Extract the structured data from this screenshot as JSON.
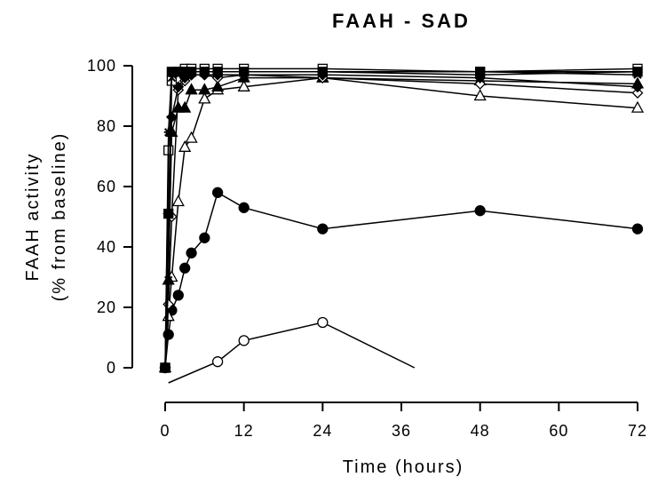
{
  "chart_data": {
    "type": "line",
    "title": "FAAH - SAD",
    "xlabel": "Time (hours)",
    "ylabel": "FAAH activity",
    "ylabel2": "(% from baseline)",
    "xlim": [
      0,
      72
    ],
    "ylim": [
      0,
      100
    ],
    "xticks": [
      0,
      12,
      24,
      36,
      48,
      60,
      72
    ],
    "yticks": [
      0,
      20,
      40,
      60,
      80,
      100
    ],
    "grid": false,
    "legend": "none",
    "series": [
      {
        "marker": "open-circle",
        "points": [
          [
            0.5,
            -5
          ],
          [
            8,
            2
          ],
          [
            12,
            9
          ],
          [
            24,
            15
          ],
          [
            38,
            0
          ]
        ]
      },
      {
        "marker": "filled-circle",
        "points": [
          [
            0,
            0
          ],
          [
            0.5,
            11
          ],
          [
            1,
            19
          ],
          [
            2,
            24
          ],
          [
            3,
            33
          ],
          [
            4,
            38
          ],
          [
            6,
            43
          ],
          [
            8,
            58
          ],
          [
            12,
            53
          ],
          [
            24,
            46
          ],
          [
            48,
            52
          ],
          [
            72,
            46
          ]
        ]
      },
      {
        "marker": "open-triangle",
        "points": [
          [
            0,
            0
          ],
          [
            0.5,
            17
          ],
          [
            1,
            30
          ],
          [
            2,
            55
          ],
          [
            3,
            73
          ],
          [
            4,
            76
          ],
          [
            6,
            89
          ],
          [
            8,
            92
          ],
          [
            12,
            93
          ],
          [
            24,
            96
          ],
          [
            48,
            90
          ],
          [
            72,
            86
          ]
        ]
      },
      {
        "marker": "filled-triangle",
        "points": [
          [
            0,
            0
          ],
          [
            0.5,
            29
          ],
          [
            1,
            78
          ],
          [
            2,
            86
          ],
          [
            3,
            86
          ],
          [
            4,
            92
          ],
          [
            6,
            92
          ],
          [
            8,
            93
          ],
          [
            12,
            96
          ],
          [
            24,
            96
          ],
          [
            48,
            95
          ],
          [
            72,
            94
          ]
        ]
      },
      {
        "marker": "open-diamond",
        "points": [
          [
            0,
            0
          ],
          [
            0.5,
            21
          ],
          [
            1,
            50
          ],
          [
            2,
            92
          ],
          [
            3,
            95
          ],
          [
            4,
            97
          ],
          [
            6,
            97
          ],
          [
            8,
            96
          ],
          [
            12,
            97
          ],
          [
            24,
            96
          ],
          [
            48,
            94
          ],
          [
            72,
            91
          ]
        ]
      },
      {
        "marker": "filled-diamond",
        "points": [
          [
            0,
            0
          ],
          [
            0.5,
            51
          ],
          [
            1,
            83
          ],
          [
            2,
            93
          ],
          [
            3,
            96
          ],
          [
            4,
            97
          ],
          [
            6,
            97
          ],
          [
            8,
            97
          ],
          [
            12,
            97
          ],
          [
            24,
            97
          ],
          [
            48,
            96
          ],
          [
            72,
            93
          ]
        ]
      },
      {
        "marker": "open-square",
        "points": [
          [
            0,
            0
          ],
          [
            0.5,
            72
          ],
          [
            1,
            95
          ],
          [
            2,
            98
          ],
          [
            3,
            99
          ],
          [
            4,
            99
          ],
          [
            6,
            99
          ],
          [
            8,
            99
          ],
          [
            12,
            99
          ],
          [
            24,
            99
          ],
          [
            48,
            98
          ],
          [
            72,
            99
          ]
        ]
      },
      {
        "marker": "filled-square",
        "points": [
          [
            0,
            0
          ],
          [
            0.5,
            51
          ],
          [
            1,
            98
          ],
          [
            2,
            98
          ],
          [
            3,
            98
          ],
          [
            4,
            98
          ],
          [
            6,
            98
          ],
          [
            8,
            98
          ],
          [
            12,
            98
          ],
          [
            24,
            98
          ],
          [
            48,
            98
          ],
          [
            72,
            98
          ]
        ]
      },
      {
        "marker": "star",
        "points": [
          [
            0,
            0
          ],
          [
            0.5,
            78
          ],
          [
            1,
            98
          ],
          [
            2,
            98
          ],
          [
            3,
            98
          ],
          [
            4,
            98
          ],
          [
            6,
            98
          ],
          [
            8,
            98
          ],
          [
            12,
            98
          ],
          [
            24,
            98
          ],
          [
            48,
            97
          ],
          [
            72,
            98
          ]
        ]
      },
      {
        "marker": "x",
        "points": [
          [
            0,
            0
          ],
          [
            0.5,
            29
          ],
          [
            1,
            96
          ],
          [
            2,
            97
          ],
          [
            3,
            98
          ],
          [
            4,
            98
          ],
          [
            6,
            98
          ],
          [
            8,
            98
          ],
          [
            12,
            98
          ],
          [
            24,
            98
          ],
          [
            48,
            98
          ],
          [
            72,
            97
          ]
        ]
      }
    ]
  }
}
